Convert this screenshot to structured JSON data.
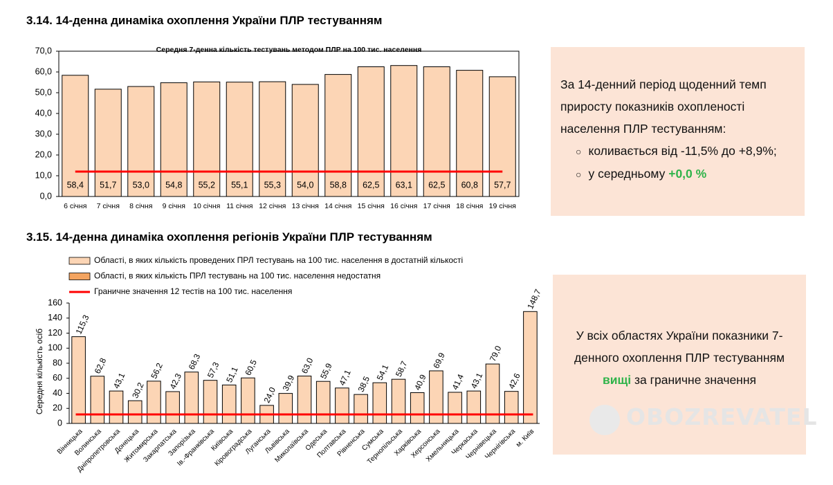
{
  "headings": [
    "3.14.  14-денна динаміка охоплення України ПЛР тестуванням",
    "3.15.  14-денна динаміка охоплення регіонів України ПЛР тестуванням"
  ],
  "summary_1": {
    "text": "За 14-денний період щоденний темп приросту показників охопленості населення ПЛР тестуванням:",
    "bullets": [
      "коливається від -11,5% до +8,9%;",
      "у середньому"
    ],
    "highlight": "+0,0 %"
  },
  "summary_2": {
    "before": "У всіх областях України показники 7-денного охоплення ПЛР тестуванням",
    "highlight": "вищі",
    "after": "за граничне значення"
  },
  "watermark": "OBOZREVATEL",
  "chart_data": [
    {
      "type": "bar",
      "title": "Середня 7-денна кількість тестувань методом ПЛР на 100 тис. населення",
      "categories": [
        "6 січня",
        "7 січня",
        "8 січня",
        "9 січня",
        "10 січня",
        "11 січня",
        "12 січня",
        "13 січня",
        "14 січня",
        "15 січня",
        "16 січня",
        "17 січня",
        "18 січня",
        "19 січня"
      ],
      "values": [
        58.4,
        51.7,
        53.0,
        54.8,
        55.2,
        55.1,
        55.3,
        54.0,
        58.8,
        62.5,
        63.1,
        62.5,
        60.8,
        57.7
      ],
      "value_labels": [
        "58,4",
        "51,7",
        "53,0",
        "54,8",
        "55,2",
        "55,1",
        "55,3",
        "54,0",
        "58,8",
        "62,5",
        "63,1",
        "62,5",
        "60,8",
        "57,7"
      ],
      "color": "#fcd5b5",
      "threshold": {
        "value": 12,
        "color": "#ff0000"
      },
      "ylim": [
        0,
        70
      ],
      "yticks": [
        {
          "value": 0,
          "label": "0,0"
        },
        {
          "value": 10,
          "label": "10,0"
        },
        {
          "value": 20,
          "label": "20,0"
        },
        {
          "value": 30,
          "label": "30,0"
        },
        {
          "value": 40,
          "label": "40,0"
        },
        {
          "value": 50,
          "label": "50,0"
        },
        {
          "value": 60,
          "label": "60,0"
        },
        {
          "value": 70,
          "label": "70,0"
        }
      ]
    },
    {
      "type": "bar",
      "y_label": "Середня кількість осіб",
      "categories": [
        "Вінницька",
        "Волинська",
        "Дніпропетровська",
        "Донецька",
        "Житомирська",
        "Закарпатська",
        "Запорізька",
        "Ів.-Франківська",
        "Київська",
        "Кіровоградська",
        "Луганська",
        "Львівська",
        "Миколаївська",
        "Одеська",
        "Полтавська",
        "Рівненська",
        "Сумська",
        "Тернопільська",
        "Харківська",
        "Херсонська",
        "Хмельницька",
        "Черкаська",
        "Чернівецька",
        "Чернігівська",
        "м. Київ"
      ],
      "series": [
        {
          "name": "Області, в яких кількість проведених ПРЛ тестувань на 100 тис. населення в достатній кількості",
          "color": "#fcd5b5",
          "values": [
            115.3,
            62.8,
            43.1,
            30.2,
            56.2,
            42.3,
            68.3,
            57.3,
            51.1,
            60.5,
            24.0,
            39.9,
            63.0,
            55.9,
            47.1,
            38.5,
            54.1,
            58.7,
            40.9,
            69.9,
            41.4,
            43.1,
            79.0,
            42.6,
            148.7
          ],
          "value_labels": [
            "115,3",
            "62,8",
            "43,1",
            "30,2",
            "56,2",
            "42,3",
            "68,3",
            "57,3",
            "51,1",
            "60,5",
            "24,0",
            "39,9",
            "63,0",
            "55,9",
            "47,1",
            "38,5",
            "54,1",
            "58,7",
            "40,9",
            "69,9",
            "41,4",
            "43,1",
            "79,0",
            "42,6",
            "148,7"
          ]
        },
        {
          "name": "Області, в яких кількість ПРЛ тестувань на 100 тис. населення недостатня",
          "color": "#f4a460",
          "values": [
            null,
            null,
            null,
            null,
            null,
            null,
            null,
            null,
            null,
            null,
            null,
            null,
            null,
            null,
            null,
            null,
            null,
            null,
            null,
            null,
            null,
            null,
            null,
            null,
            null
          ]
        }
      ],
      "threshold": {
        "name": "Граничне значення 12 тестів на 100 тис. населення",
        "value": 12,
        "color": "#ff0000"
      },
      "ylim": [
        0,
        160
      ],
      "yticks": [
        0,
        20,
        40,
        60,
        80,
        100,
        120,
        140,
        160
      ]
    }
  ]
}
